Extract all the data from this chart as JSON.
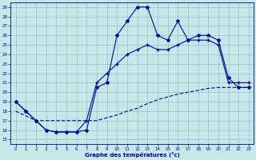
{
  "xlabel": "Graphe des températures (°c)",
  "bg_color": "#c8e8e8",
  "grid_color": "#9bbccc",
  "line_color": "#0000aa",
  "xlim": [
    -0.5,
    23.5
  ],
  "ylim": [
    14.5,
    29.5
  ],
  "xticks": [
    0,
    1,
    2,
    3,
    4,
    5,
    6,
    7,
    8,
    9,
    10,
    11,
    12,
    13,
    14,
    15,
    16,
    17,
    18,
    19,
    20,
    21,
    22,
    23
  ],
  "yticks": [
    15,
    16,
    17,
    18,
    19,
    20,
    21,
    22,
    23,
    24,
    25,
    26,
    27,
    28,
    29
  ],
  "line1_x": [
    0,
    1,
    2,
    3,
    4,
    5,
    6,
    7,
    8,
    9,
    10,
    11,
    12,
    13,
    14,
    15,
    16,
    17,
    18,
    19,
    20,
    21,
    22,
    23
  ],
  "line1_y": [
    19,
    18,
    17,
    16,
    15.8,
    15.8,
    15.8,
    16,
    20.5,
    21,
    26,
    27.5,
    29,
    29,
    26,
    25.5,
    27.5,
    25.5,
    26,
    26,
    25.5,
    21.5,
    20.5,
    20.5
  ],
  "line2_x": [
    0,
    1,
    2,
    3,
    4,
    5,
    6,
    7,
    8,
    9,
    10,
    11,
    12,
    13,
    14,
    15,
    16,
    17,
    18,
    19,
    20,
    21,
    22,
    23
  ],
  "line2_y": [
    19,
    18,
    17,
    16,
    15.8,
    15.8,
    15.8,
    17,
    21,
    22,
    23,
    24,
    24.5,
    25,
    24.5,
    24.5,
    25,
    25.5,
    25.5,
    25.5,
    25,
    21,
    21,
    21
  ],
  "line3_x": [
    0,
    1,
    2,
    3,
    4,
    5,
    6,
    7,
    8,
    9,
    10,
    11,
    12,
    13,
    14,
    15,
    16,
    17,
    18,
    19,
    20,
    21,
    22,
    23
  ],
  "line3_y": [
    18,
    17.5,
    17,
    17,
    17,
    17,
    17,
    17,
    17,
    17.3,
    17.6,
    18,
    18.3,
    18.8,
    19.2,
    19.5,
    19.8,
    20,
    20.2,
    20.4,
    20.5,
    20.5,
    20.5,
    20.5
  ]
}
